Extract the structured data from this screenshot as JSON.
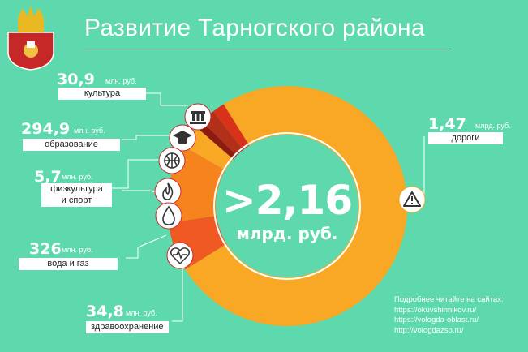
{
  "title": "Развитие Тарногского района",
  "colors": {
    "background": "#5ed9ae",
    "ring_main": "#f9a825",
    "accent_red": "#d32f2f",
    "accent_orange": "#f57c00"
  },
  "total": {
    "value": ">2,16",
    "unit": "млрд. руб."
  },
  "items": [
    {
      "amount": "30,9",
      "unit": "млн. руб.",
      "label": "культура",
      "icon": "column-icon"
    },
    {
      "amount": "294,9",
      "unit": "млн. руб.",
      "label": "образование",
      "icon": "graduation-cap-icon"
    },
    {
      "amount": "5,7",
      "unit": "млн. руб.",
      "label_line1": "физкультура",
      "label_line2": "и спорт",
      "icon": "basketball-icon"
    },
    {
      "amount": "326",
      "unit": "млн. руб.",
      "label": "вода и газ",
      "icon": "flame-icon"
    },
    {
      "amount": "34,8",
      "unit": "млн. руб.",
      "label": "здравоохранение",
      "icon": "heart-pulse-icon"
    },
    {
      "amount": "1,47",
      "unit": "млрд. руб.",
      "label": "дороги",
      "icon": "warning-road-icon"
    }
  ],
  "water_icon": "water-drop-icon",
  "footer": {
    "heading": "Подробнее читайте на сайтах:",
    "links": [
      "https://okuvshinnikov.ru/",
      "https://vologda-oblast.ru/",
      "http://vologdazso.ru/"
    ]
  },
  "chart_data": {
    "type": "pie",
    "categories": [
      "дороги",
      "культура",
      "образование",
      "физкультура и спорт",
      "вода и газ",
      "здравоохранение"
    ]
  }
}
